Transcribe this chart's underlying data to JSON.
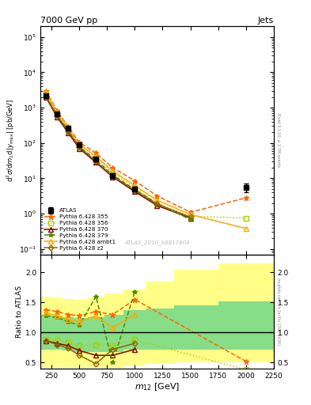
{
  "title_left": "7000 GeV pp",
  "title_right": "Jets",
  "ylabel_main": "d^{2}#sigma/dm_{1}d|y_{max}| [pb/GeV]",
  "ylabel_ratio": "Ratio to ATLAS",
  "xlabel": "m_{12} [GeV]",
  "watermark": "ATLAS_2010_S8817804",
  "right_label1": "Rivet 3.1.10, ≥ 2.7M events",
  "right_label2": "mcplots.cern.ch [arXiv:1306.3436]",
  "x_values": [
    200,
    300,
    400,
    500,
    650,
    800,
    1000,
    1200,
    1500,
    2000
  ],
  "x_edges": [
    150,
    250,
    350,
    450,
    575,
    725,
    900,
    1100,
    1350,
    1750,
    2250
  ],
  "atlas_y": [
    2200,
    680,
    260,
    90,
    35,
    12,
    5,
    null,
    null,
    5.5
  ],
  "atlas_yerr": [
    200,
    60,
    25,
    9,
    4,
    2,
    0.8,
    null,
    null,
    1.5
  ],
  "p355_y": [
    3000,
    820,
    290,
    105,
    52,
    20,
    8.5,
    3.2,
    1.1,
    2.8
  ],
  "p356_y": [
    2500,
    640,
    235,
    82,
    38,
    14,
    5.5,
    2.0,
    0.85,
    0.75
  ],
  "p370_y": [
    1950,
    540,
    195,
    70,
    28,
    11,
    4.2,
    1.7,
    0.75,
    null
  ],
  "p379_y": [
    2150,
    610,
    225,
    78,
    33,
    12.5,
    4.8,
    1.95,
    0.68,
    null
  ],
  "pambt1_y": [
    2750,
    740,
    265,
    92,
    42,
    16,
    6.2,
    2.4,
    0.95,
    0.38
  ],
  "pz2_y": [
    2050,
    590,
    215,
    76,
    30,
    11.5,
    4.6,
    1.85,
    0.8,
    null
  ],
  "r355_y": [
    1.38,
    1.35,
    1.3,
    1.28,
    1.35,
    1.3,
    1.55,
    null,
    null,
    0.52
  ],
  "r356_y": [
    0.88,
    0.87,
    0.84,
    0.78,
    0.8,
    0.78,
    0.88,
    null,
    null,
    0.38
  ],
  "r370_y": [
    0.86,
    0.82,
    0.78,
    0.7,
    0.62,
    0.62,
    0.72,
    null,
    null,
    null
  ],
  "r379_y": [
    1.28,
    1.25,
    1.18,
    1.12,
    1.6,
    0.5,
    1.68,
    null,
    null,
    null
  ],
  "rambt1_y": [
    1.33,
    1.28,
    1.22,
    1.18,
    1.28,
    1.08,
    1.3,
    null,
    null,
    null
  ],
  "rz2_y": [
    0.86,
    0.8,
    0.74,
    0.62,
    0.48,
    0.72,
    0.82,
    null,
    null,
    null
  ],
  "band_x_edges": [
    150,
    250,
    350,
    450,
    575,
    725,
    900,
    1100,
    1350,
    1750,
    2250
  ],
  "band_yellow_low": [
    0.42,
    0.42,
    0.42,
    0.42,
    0.42,
    0.42,
    0.45,
    0.48,
    0.5,
    0.5
  ],
  "band_yellow_high": [
    1.6,
    1.58,
    1.56,
    1.55,
    1.58,
    1.65,
    1.72,
    1.85,
    2.05,
    2.15
  ],
  "band_green_low": [
    0.72,
    0.72,
    0.7,
    0.68,
    0.68,
    0.68,
    0.72,
    0.72,
    0.72,
    0.72
  ],
  "band_green_high": [
    1.3,
    1.28,
    1.26,
    1.24,
    1.26,
    1.3,
    1.38,
    1.4,
    1.45,
    1.52
  ],
  "color_355": "#FF6600",
  "color_356": "#AACC00",
  "color_370": "#880000",
  "color_379": "#558800",
  "color_ambt1": "#FFAA00",
  "color_z2": "#886600",
  "color_atlas": "#000000",
  "color_yellow": "#FFFF88",
  "color_green": "#88DD88"
}
